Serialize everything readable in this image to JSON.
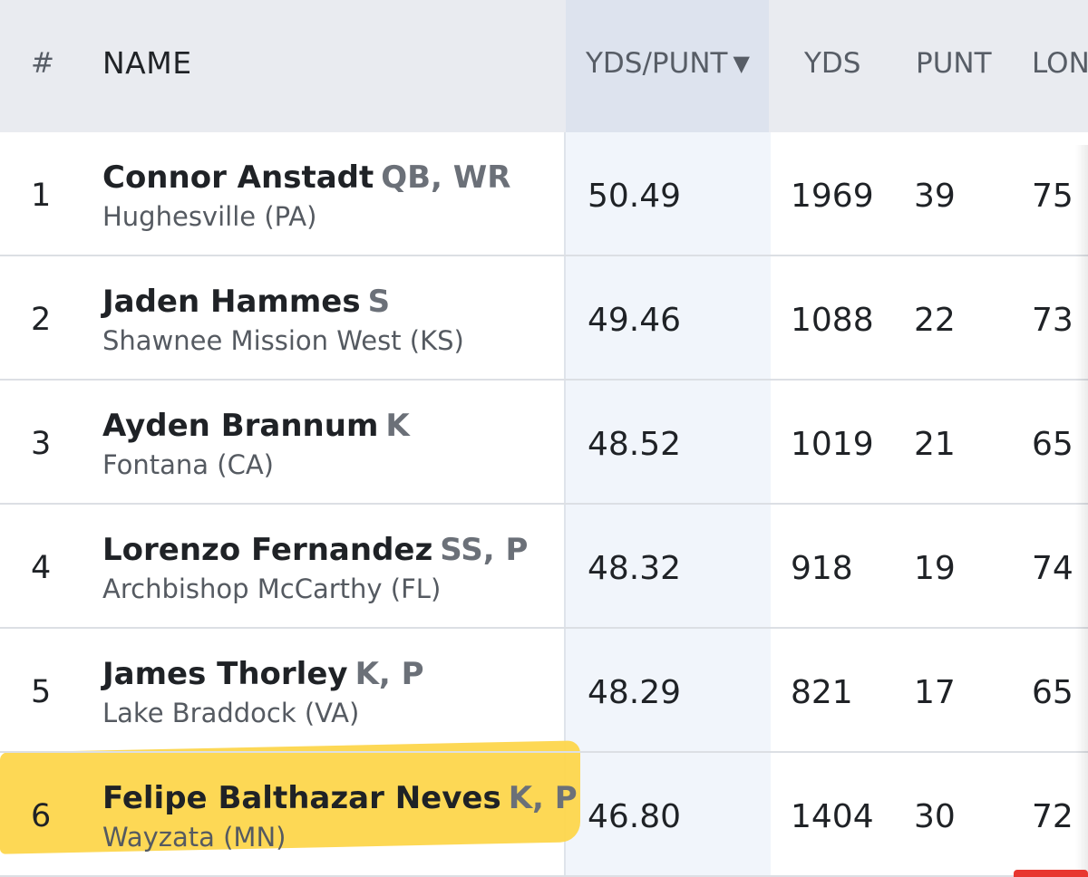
{
  "columns": {
    "rank": "#",
    "name": "NAME",
    "yds_per_punt": "YDS/PUNT",
    "sort_indicator": "▼",
    "yds": "YDS",
    "punt": "PUNT",
    "lng": "LON"
  },
  "rows": [
    {
      "rank": "1",
      "name": "Connor Anstadt",
      "pos": "QB, WR",
      "school": "Hughesville (PA)",
      "ypp": "50.49",
      "yds": "1969",
      "punt": "39",
      "lng": "75"
    },
    {
      "rank": "2",
      "name": "Jaden Hammes",
      "pos": "S",
      "school": "Shawnee Mission West (KS)",
      "ypp": "49.46",
      "yds": "1088",
      "punt": "22",
      "lng": "73"
    },
    {
      "rank": "3",
      "name": "Ayden Brannum",
      "pos": "K",
      "school": "Fontana (CA)",
      "ypp": "48.52",
      "yds": "1019",
      "punt": "21",
      "lng": "65"
    },
    {
      "rank": "4",
      "name": "Lorenzo Fernandez",
      "pos": "SS, P",
      "school": "Archbishop McCarthy (FL)",
      "ypp": "48.32",
      "yds": "918",
      "punt": "19",
      "lng": "74"
    },
    {
      "rank": "5",
      "name": "James Thorley",
      "pos": "K, P",
      "school": "Lake Braddock (VA)",
      "ypp": "48.29",
      "yds": "821",
      "punt": "17",
      "lng": "65"
    },
    {
      "rank": "6",
      "name": "Felipe Balthazar Neves",
      "pos": "K, P",
      "school": "Wayzata (MN)",
      "ypp": "46.80",
      "yds": "1404",
      "punt": "30",
      "lng": "72"
    }
  ],
  "colors": {
    "highlight": "#fdd64c",
    "header_bg": "#e9ebf0",
    "sorted_col_bg": "#f1f5fb"
  }
}
